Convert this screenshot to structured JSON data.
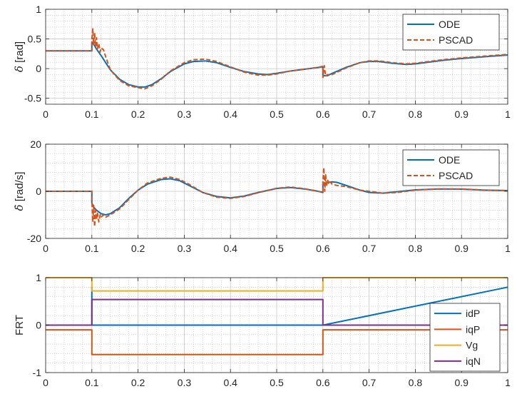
{
  "chart_data": [
    {
      "type": "line",
      "ylabel_math": "δ",
      "ylabel_unit": "[rad]",
      "xlim": [
        0,
        1
      ],
      "ylim": [
        -0.6,
        1
      ],
      "xticks": [
        0,
        0.1,
        0.2,
        0.3,
        0.4,
        0.5,
        0.6,
        0.7,
        0.8,
        0.9,
        1
      ],
      "xtick_labels": [
        "0",
        "0.1",
        "0.2",
        "0.3",
        "0.4",
        "0.5",
        "0.6",
        "0.7",
        "0.8",
        "0.9",
        "1"
      ],
      "yticks": [
        -0.5,
        0,
        0.5,
        1
      ],
      "ytick_labels": [
        "-0.5",
        "0",
        "0.5",
        "1"
      ],
      "grid": true,
      "minor_grid": true,
      "legend_position": "top-right",
      "series": [
        {
          "name": "ODE",
          "color": "#0072BD",
          "style": "solid",
          "x": [
            0,
            0.1,
            0.1,
            0.105,
            0.11,
            0.12,
            0.13,
            0.14,
            0.16,
            0.18,
            0.2,
            0.215,
            0.23,
            0.25,
            0.27,
            0.3,
            0.32,
            0.345,
            0.37,
            0.4,
            0.43,
            0.46,
            0.48,
            0.5,
            0.53,
            0.56,
            0.59,
            0.6,
            0.6,
            0.61,
            0.62,
            0.65,
            0.68,
            0.7,
            0.72,
            0.75,
            0.78,
            0.8,
            0.83,
            0.86,
            0.9,
            0.95,
            1
          ],
          "y": [
            0.3,
            0.3,
            0.45,
            0.4,
            0.33,
            0.22,
            0.1,
            -0.02,
            -0.18,
            -0.27,
            -0.31,
            -0.31,
            -0.27,
            -0.17,
            -0.05,
            0.08,
            0.12,
            0.13,
            0.1,
            0.02,
            -0.05,
            -0.09,
            -0.1,
            -0.08,
            -0.04,
            -0.01,
            0.02,
            0.03,
            -0.12,
            -0.12,
            -0.08,
            0.02,
            0.1,
            0.12,
            0.12,
            0.09,
            0.07,
            0.08,
            0.11,
            0.14,
            0.17,
            0.2,
            0.23
          ]
        },
        {
          "name": "PSCAD",
          "color": "#D95319",
          "style": "dashed",
          "x": [
            0,
            0.1,
            0.1,
            0.102,
            0.104,
            0.106,
            0.108,
            0.11,
            0.112,
            0.115,
            0.118,
            0.12,
            0.125,
            0.13,
            0.14,
            0.16,
            0.18,
            0.2,
            0.215,
            0.23,
            0.25,
            0.27,
            0.3,
            0.32,
            0.345,
            0.37,
            0.4,
            0.43,
            0.46,
            0.48,
            0.5,
            0.53,
            0.56,
            0.59,
            0.6,
            0.6,
            0.603,
            0.606,
            0.61,
            0.62,
            0.65,
            0.68,
            0.7,
            0.72,
            0.75,
            0.78,
            0.8,
            0.83,
            0.86,
            0.9,
            0.95,
            1
          ],
          "y": [
            0.3,
            0.3,
            0.5,
            0.67,
            0.4,
            0.6,
            0.38,
            0.52,
            0.33,
            0.42,
            0.28,
            0.35,
            0.32,
            0.2,
            -0.02,
            -0.2,
            -0.29,
            -0.32,
            -0.34,
            -0.29,
            -0.18,
            -0.04,
            0.1,
            0.15,
            0.16,
            0.12,
            0.03,
            -0.06,
            -0.11,
            -0.11,
            -0.09,
            -0.04,
            -0.01,
            0.02,
            0.04,
            -0.15,
            0.05,
            -0.13,
            -0.1,
            -0.1,
            0.01,
            0.1,
            0.13,
            0.13,
            0.1,
            0.08,
            0.09,
            0.12,
            0.15,
            0.18,
            0.21,
            0.24
          ]
        }
      ]
    },
    {
      "type": "line",
      "ylabel_math": "δ̇",
      "ylabel_unit": "[rad/s]",
      "xlim": [
        0,
        1
      ],
      "ylim": [
        -20,
        20
      ],
      "xticks": [
        0,
        0.1,
        0.2,
        0.3,
        0.4,
        0.5,
        0.6,
        0.7,
        0.8,
        0.9,
        1
      ],
      "xtick_labels": [
        "0",
        "0.1",
        "0.2",
        "0.3",
        "0.4",
        "0.5",
        "0.6",
        "0.7",
        "0.8",
        "0.9",
        "1"
      ],
      "yticks": [
        -20,
        0,
        20
      ],
      "ytick_labels": [
        "-20",
        "0",
        "20"
      ],
      "grid": true,
      "minor_grid": true,
      "legend_position": "top-right",
      "series": [
        {
          "name": "ODE",
          "color": "#0072BD",
          "style": "solid",
          "x": [
            0,
            0.1,
            0.1,
            0.105,
            0.11,
            0.12,
            0.13,
            0.14,
            0.16,
            0.18,
            0.2,
            0.22,
            0.25,
            0.27,
            0.29,
            0.31,
            0.34,
            0.37,
            0.4,
            0.43,
            0.46,
            0.5,
            0.53,
            0.56,
            0.59,
            0.6,
            0.6,
            0.605,
            0.61,
            0.62,
            0.63,
            0.65,
            0.68,
            0.7,
            0.73,
            0.76,
            0.8,
            0.85,
            0.9,
            0.95,
            1
          ],
          "y": [
            0,
            0,
            -5,
            -7,
            -8,
            -9.5,
            -10,
            -9.5,
            -7,
            -3,
            0.5,
            3,
            5,
            5.3,
            4.5,
            2.5,
            -0.5,
            -2.2,
            -2.8,
            -2,
            -0.5,
            1.2,
            1.6,
            1,
            0,
            -0.5,
            3,
            3.4,
            3.8,
            4,
            3.8,
            2.5,
            0.5,
            -0.5,
            -0.8,
            -0.2,
            0.6,
            1,
            0.9,
            0.5,
            0.3
          ]
        },
        {
          "name": "PSCAD",
          "color": "#D95319",
          "style": "dashed",
          "x": [
            0,
            0.1,
            0.1,
            0.102,
            0.104,
            0.106,
            0.108,
            0.11,
            0.112,
            0.115,
            0.118,
            0.12,
            0.125,
            0.13,
            0.14,
            0.16,
            0.18,
            0.2,
            0.22,
            0.25,
            0.27,
            0.29,
            0.31,
            0.34,
            0.37,
            0.4,
            0.43,
            0.46,
            0.5,
            0.53,
            0.56,
            0.59,
            0.6,
            0.6,
            0.602,
            0.604,
            0.606,
            0.608,
            0.61,
            0.613,
            0.616,
            0.62,
            0.63,
            0.65,
            0.68,
            0.7,
            0.73,
            0.76,
            0.8,
            0.85,
            0.9,
            0.95,
            1
          ],
          "y": [
            0,
            0,
            -4,
            -13,
            -6,
            -15,
            -8,
            -12,
            -9,
            -13,
            -10,
            -11,
            -10,
            -11,
            -10,
            -7.5,
            -3.5,
            0.5,
            3.5,
            5.5,
            6,
            5,
            3,
            -0.5,
            -2.5,
            -3,
            -2.2,
            -0.6,
            1.3,
            1.8,
            1.1,
            0,
            -0.5,
            4,
            10,
            0,
            7,
            2,
            5,
            3,
            4,
            3,
            2.5,
            2,
            0.5,
            0,
            -0.8,
            -0.5,
            0.5,
            1,
            1,
            0.5,
            0.3
          ]
        }
      ]
    },
    {
      "type": "line",
      "ylabel": "FRT",
      "xlim": [
        0,
        1
      ],
      "ylim": [
        -1,
        1
      ],
      "xticks": [
        0,
        0.1,
        0.2,
        0.3,
        0.4,
        0.5,
        0.6,
        0.7,
        0.8,
        0.9,
        1
      ],
      "xtick_labels": [
        "0",
        "0.1",
        "0.2",
        "0.3",
        "0.4",
        "0.5",
        "0.6",
        "0.7",
        "0.8",
        "0.9",
        "1"
      ],
      "yticks": [
        -1,
        0,
        1
      ],
      "ytick_labels": [
        "-1",
        "0",
        "1"
      ],
      "grid": true,
      "minor_grid": true,
      "legend_position": "bottom-right",
      "series": [
        {
          "name": "idP",
          "color": "#0072BD",
          "style": "solid",
          "x": [
            0,
            0.1,
            0.1,
            0.1,
            0.6,
            1
          ],
          "y": [
            0,
            0,
            0.8,
            0,
            0,
            0.8
          ]
        },
        {
          "name": "iqP",
          "color": "#D95319",
          "style": "solid",
          "x": [
            0,
            0.1,
            0.1,
            0.6,
            0.6,
            1
          ],
          "y": [
            -0.1,
            -0.1,
            -0.62,
            -0.62,
            -0.1,
            -0.1
          ]
        },
        {
          "name": "Vg",
          "color": "#EDB120",
          "style": "solid",
          "x": [
            0,
            0.1,
            0.1,
            0.6,
            0.6,
            1
          ],
          "y": [
            1,
            1,
            0.72,
            0.72,
            1,
            1
          ]
        },
        {
          "name": "iqN",
          "color": "#7E2F8E",
          "style": "solid",
          "x": [
            0,
            0.1,
            0.1,
            0.6,
            0.6,
            1
          ],
          "y": [
            0,
            0,
            0.54,
            0.54,
            0,
            0
          ]
        }
      ]
    }
  ]
}
